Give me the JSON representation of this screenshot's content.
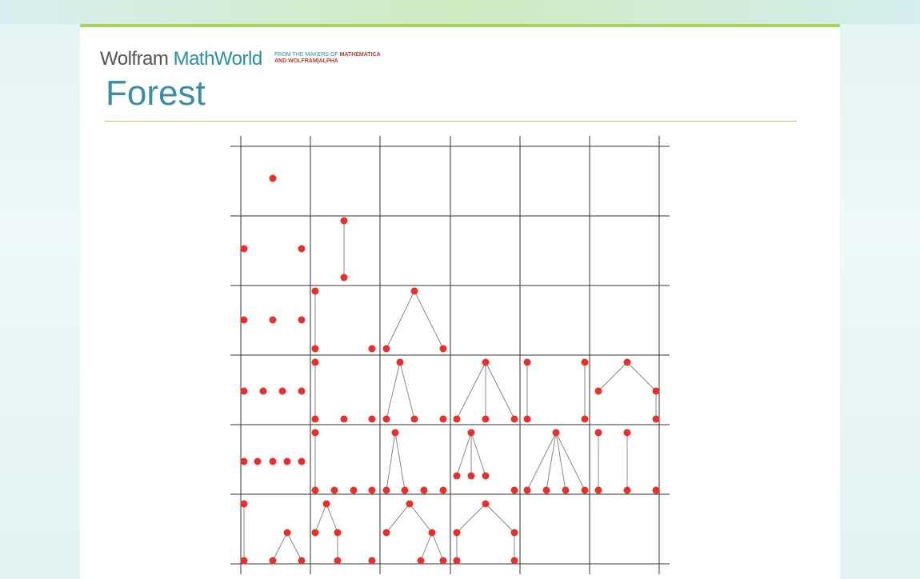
{
  "header": {
    "brand_1": "Wolfram",
    "brand_2": "MathWorld",
    "tagline_1": "FROM THE MAKERS OF",
    "tagline_1b": "MATHEMATICA",
    "tagline_2": "AND WOLFRAM|ALPHA"
  },
  "page": {
    "title": "Forest"
  }
}
